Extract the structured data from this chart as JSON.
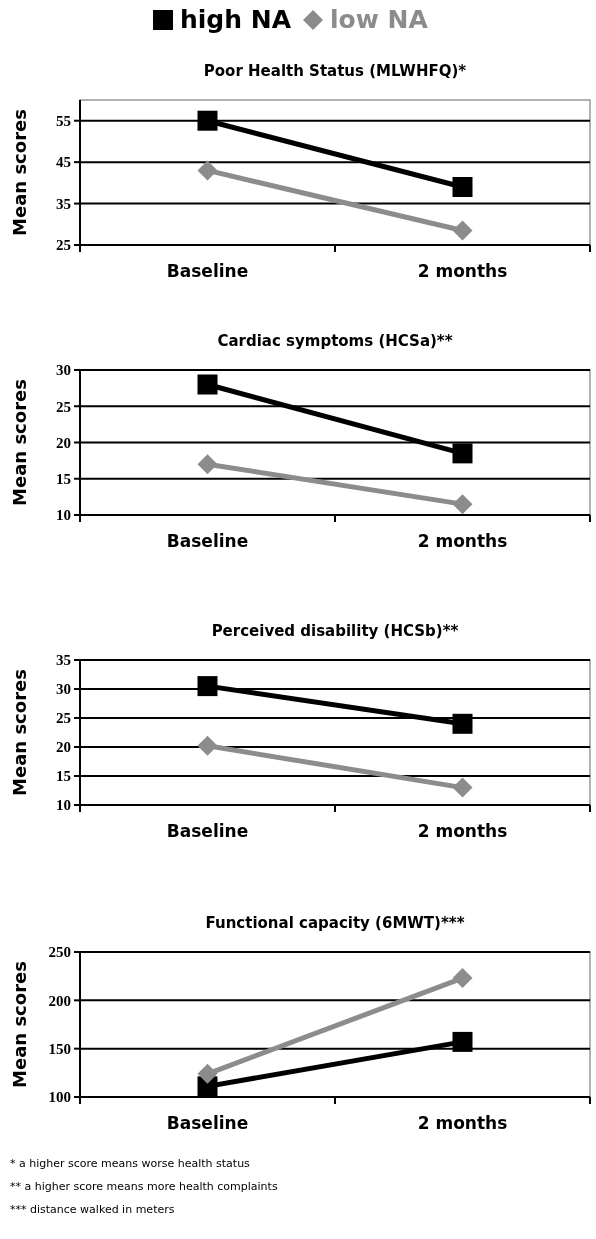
{
  "chart_data": [
    {
      "type": "line",
      "title": "Poor Health Status (MLWHFQ)*",
      "ylabel": "Mean scores",
      "categories": [
        "Baseline",
        "2 months"
      ],
      "ylim": [
        25,
        60
      ],
      "yticks": [
        25,
        35,
        45,
        55
      ],
      "grid": "y",
      "legend": "top",
      "series": [
        {
          "name": "high NA",
          "color": "#000000",
          "marker": "square",
          "values": [
            55,
            39
          ]
        },
        {
          "name": "low NA",
          "color": "#8c8c8c",
          "marker": "diamond",
          "values": [
            43,
            28.5
          ]
        }
      ]
    },
    {
      "type": "line",
      "title": "Cardiac symptoms (HCSa)**",
      "ylabel": "Mean scores",
      "categories": [
        "Baseline",
        "2 months"
      ],
      "ylim": [
        10,
        30
      ],
      "yticks": [
        10,
        15,
        20,
        25,
        30
      ],
      "grid": "y",
      "series": [
        {
          "color": "#000000",
          "marker": "square",
          "values": [
            28,
            18.5
          ]
        },
        {
          "color": "#8c8c8c",
          "marker": "diamond",
          "values": [
            17,
            11.5
          ]
        }
      ]
    },
    {
      "type": "line",
      "title": "Perceived disability (HCSb)**",
      "ylabel": "Mean scores",
      "categories": [
        "Baseline",
        "2 months"
      ],
      "ylim": [
        10,
        35
      ],
      "yticks": [
        10,
        15,
        20,
        25,
        30,
        35
      ],
      "grid": "y",
      "series": [
        {
          "color": "#000000",
          "marker": "square",
          "values": [
            30.5,
            24
          ]
        },
        {
          "color": "#8c8c8c",
          "marker": "diamond",
          "values": [
            20.2,
            13
          ]
        }
      ]
    },
    {
      "type": "line",
      "title": "Functional capacity (6MWT)***",
      "ylabel": "Mean scores",
      "categories": [
        "Baseline",
        "2 months"
      ],
      "ylim": [
        100,
        250
      ],
      "yticks": [
        100,
        150,
        200,
        250
      ],
      "grid": "y",
      "series": [
        {
          "color": "#000000",
          "marker": "square",
          "values": [
            111,
            157
          ]
        },
        {
          "color": "#8c8c8c",
          "marker": "diamond",
          "values": [
            124,
            223
          ]
        }
      ],
      "annotations": [
        "* a higher score means worse health status",
        "** a higher score means more health complaints",
        "*** distance walked in meters"
      ]
    }
  ]
}
